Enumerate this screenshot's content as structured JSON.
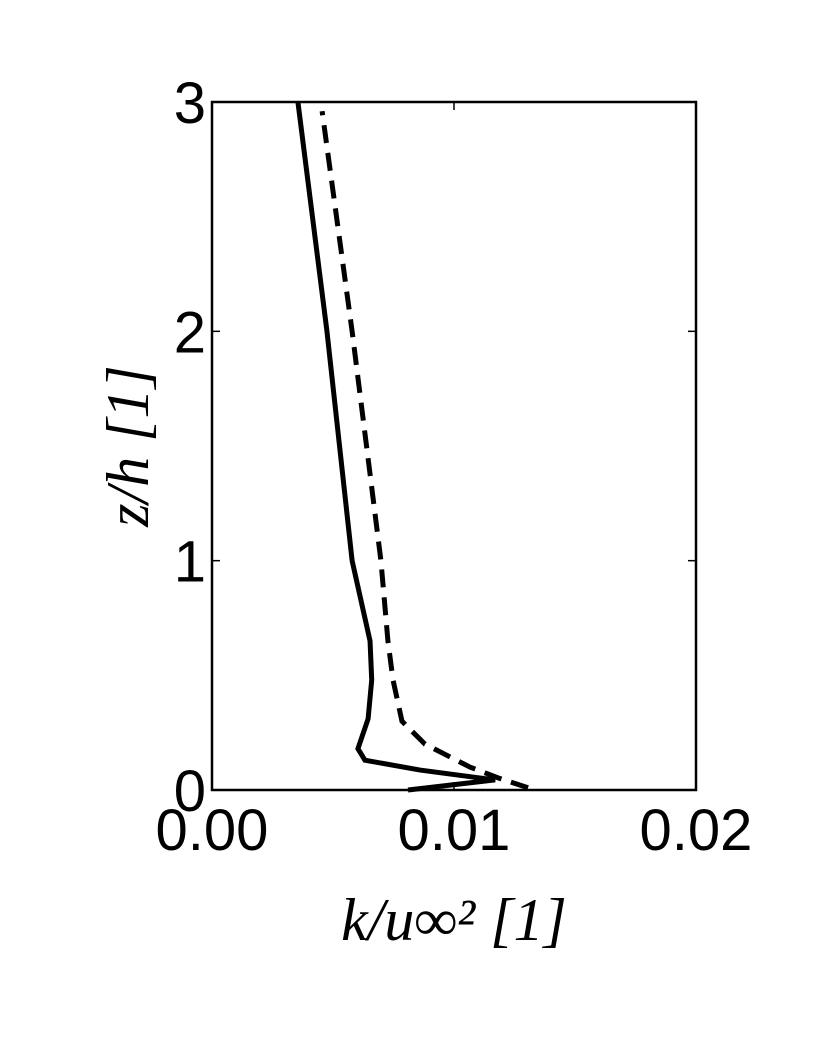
{
  "chart_data": {
    "type": "line",
    "xlabel": "k/u∞²  [1]",
    "ylabel": "z/h [1]",
    "xlim": [
      0,
      0.02
    ],
    "ylim": [
      0,
      3
    ],
    "xticks": [
      {
        "value": 0,
        "label": "0.00"
      },
      {
        "value": 0.01,
        "label": "0.01"
      },
      {
        "value": 0.02,
        "label": "0.02"
      }
    ],
    "yticks": [
      0,
      1,
      2,
      3
    ],
    "grid": false,
    "series": [
      {
        "color": "#000000",
        "dash": "solid",
        "x": [
          0.0081,
          0.0117,
          0.0111,
          0.0086,
          0.00632,
          0.00603,
          0.00645,
          0.0066,
          0.00653,
          0.00579,
          0.00475,
          0.00355
        ],
        "y": [
          0,
          0.044,
          0.052,
          0.087,
          0.13,
          0.18,
          0.31,
          0.48,
          0.65,
          1,
          2,
          3
        ]
      },
      {
        "color": "#000000",
        "dash": "dashed",
        "x": [
          0.01306,
          0.0119,
          0.01066,
          0.0088,
          0.00785,
          0.00748,
          0.00727,
          0.00698,
          0.00579,
          0.00455
        ],
        "y": [
          0.01,
          0.05,
          0.1,
          0.2,
          0.3,
          0.48,
          0.65,
          1,
          2,
          2.96
        ]
      }
    ]
  }
}
